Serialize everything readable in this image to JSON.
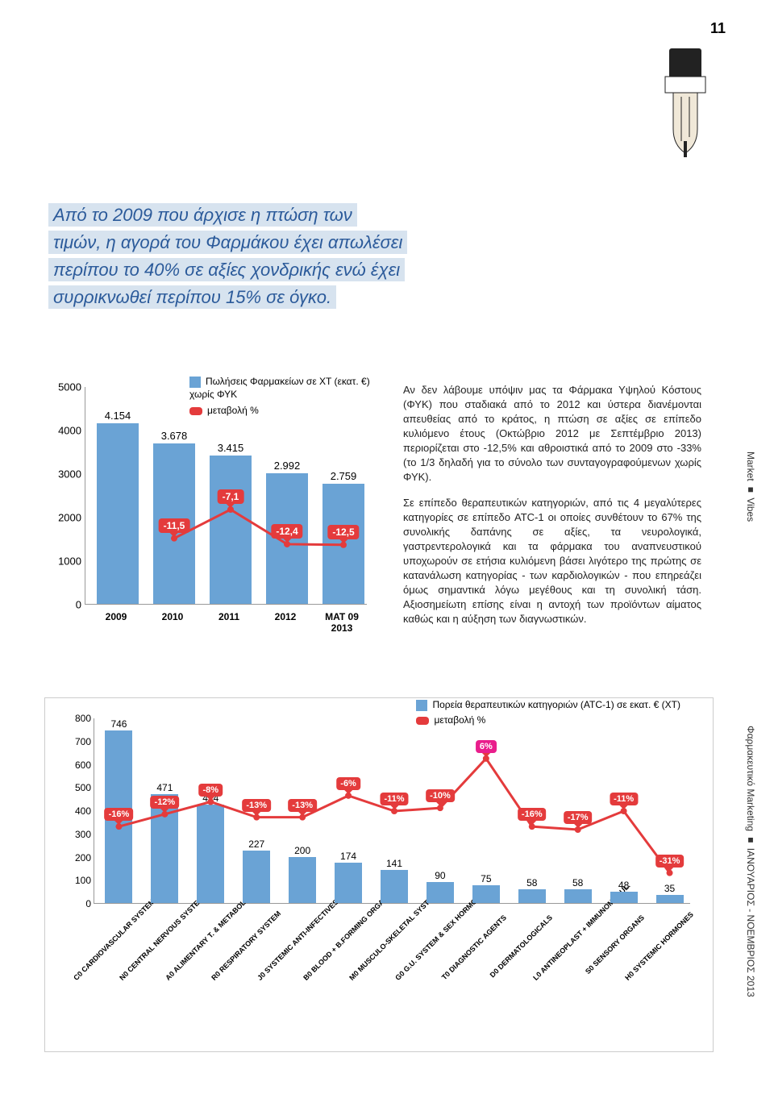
{
  "page_number": "11",
  "callout": {
    "l1": "Από το 2009 που άρχισε η πτώση των",
    "l2": "τιμών, η αγορά του Φαρμάκου έχει απωλέσει",
    "l3": "περίπου το 40% σε αξίες χονδρικής ενώ έχει",
    "l4": "συρρικνωθεί περίπου 15% σε όγκο.",
    "bg": "#d7e3ef",
    "color": "#2b5a9a"
  },
  "chart1": {
    "type": "bar+line",
    "legend_bar": "Πωλήσεις Φαρμακείων σε ΧΤ (εκατ. €) χωρίς ΦΥΚ",
    "legend_line": "μεταβολή %",
    "bar_color": "#6aa3d5",
    "line_color": "#e43b3c",
    "ylim": [
      0,
      5000
    ],
    "ytick_step": 1000,
    "categories": [
      "2009",
      "2010",
      "2011",
      "2012",
      "MAT 09 2013"
    ],
    "values": [
      4154,
      3678,
      3415,
      2992,
      2759
    ],
    "value_labels": [
      "4.154",
      "3.678",
      "3.415",
      "2.992",
      "2.759"
    ],
    "changes": [
      null,
      -11.5,
      -7.1,
      -12.4,
      -12.5
    ],
    "change_labels": [
      "",
      "-11,5",
      "-7,1",
      "-12,4",
      "-12,5"
    ]
  },
  "body": {
    "p1": "Αν δεν λάβουμε υπόψιν μας τα Φάρμακα Υψηλού Κόστους (ΦΥΚ) που σταδιακά από το 2012 και ύστερα διανέμονται απευθείας από το κράτος, η πτώση σε αξίες σε επίπεδο κυλιόμενο έτους (Οκτώβριο 2012 με Σεπτέμβριο 2013) περιορίζεται στο -12,5% και αθροιστικά από το 2009 στο -33% (το 1/3 δηλαδή για το σύνολο των συνταγογραφούμενων χωρίς ΦΥΚ).",
    "p2": "Σε επίπεδο θεραπευτικών κατηγοριών, από τις 4 μεγαλύτερες κατηγορίες σε επίπεδο ATC-1 οι οποίες συνθέτουν το 67% της συνολικής δαπάνης σε αξίες, τα νευρολογικά, γαστρεντερολογικά και τα φάρμακα του αναπνευστικού υποχωρούν σε ετήσια κυλιόμενη βάσει λιγότερο της πρώτης σε κατανάλωση κατηγορίας - των καρδιολογικών - που επηρεάζει όμως σημαντικά λόγω μεγέθους και τη συνολική τάση. Αξιοσημείωτη επίσης είναι η αντοχή των προϊόντων αίματος καθώς και η αύξηση των διαγνωστικών."
  },
  "side": {
    "s1": "Market ■ Vibes",
    "s2": "Φαρμακευτικό Marketing ■ ΙΑΝΟΥΑΡΙΟΣ - ΝΟΕΜΒΡΙΟΣ 2013"
  },
  "chart2": {
    "type": "bar+line",
    "legend_bar": "Πορεία θεραπευτικών κατηγοριών (ATC-1) σε εκατ. € (ΧΤ)",
    "legend_line": "μεταβολή %",
    "bar_color": "#6aa3d5",
    "line_color": "#e43b3c",
    "highlight_color": "#e91e8c",
    "ylim": [
      0,
      800
    ],
    "ytick_step": 100,
    "categories": [
      "C0 CARDIOVASCULAR SYSTEM",
      "N0 CENTRAL NERVOUS SYSTEM",
      "A0 ALIMENTARY T. & METABOLISM",
      "R0 RESPIRATORY SYSTEM",
      "J0 SYSTEMIC ANTI-INFECTIVES",
      "B0 BLOOD + B.FORMING ORGANS",
      "M0 MUSCULO-SKELETAL SYSTEM",
      "G0 G.U. SYSTEM & SEX HORMONES",
      "T0 DIAGNOSTIC AGENTS",
      "D0 DERMATOLOGICALS",
      "L0 ANTINEOPLAST + IMMUNOMODUL.",
      "S0 SENSORY ORGANS",
      "H0 SYSTEMIC HORMONES"
    ],
    "values": [
      746,
      471,
      424,
      227,
      200,
      174,
      141,
      90,
      75,
      58,
      58,
      48,
      35
    ],
    "changes": [
      -16,
      -12,
      -8,
      -13,
      -13,
      -6,
      -11,
      -10,
      6,
      -16,
      -17,
      -11,
      -31
    ],
    "change_labels": [
      "-16%",
      "-12%",
      "-8%",
      "-13%",
      "-13%",
      "-6%",
      "-11%",
      "-10%",
      "6%",
      "-16%",
      "-17%",
      "-11%",
      "-31%"
    ]
  }
}
